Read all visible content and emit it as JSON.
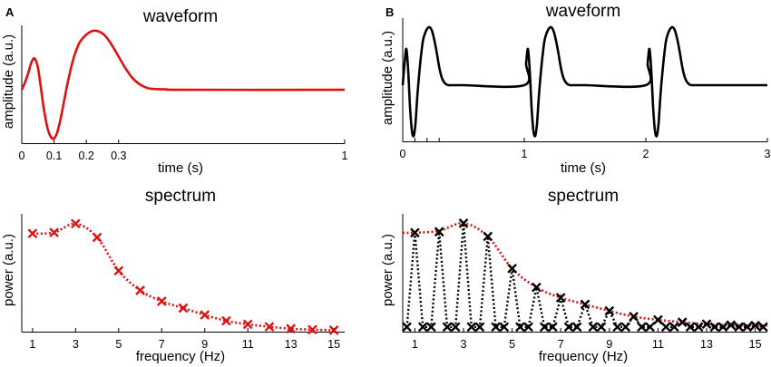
{
  "panel_labels": [
    "A",
    "B"
  ],
  "chart_data": [
    {
      "type": "line",
      "title": "waveform",
      "xlabel": "time (s)",
      "ylabel": "amplitude (a.u.)",
      "xlim": [
        0,
        1
      ],
      "xticks": [
        "0",
        "0.1",
        "0.2",
        "0.3",
        "1"
      ],
      "series": [
        {
          "color": "#e01010",
          "x": [
            0,
            0.01,
            0.02,
            0.03,
            0.04,
            0.05,
            0.06,
            0.07,
            0.08,
            0.09,
            0.1,
            0.11,
            0.12,
            0.13,
            0.14,
            0.15,
            0.16,
            0.17,
            0.18,
            0.2,
            0.22,
            0.24,
            0.26,
            0.28,
            0.3,
            0.32,
            0.34,
            0.36,
            0.38,
            0.4,
            0.45,
            0.5,
            1.0
          ],
          "y": [
            0,
            0.2,
            0.45,
            0.75,
            0.85,
            0.6,
            0.0,
            -0.6,
            -1.05,
            -1.28,
            -1.32,
            -1.15,
            -0.8,
            -0.35,
            0.1,
            0.5,
            0.85,
            1.1,
            1.3,
            1.5,
            1.6,
            1.58,
            1.45,
            1.2,
            0.9,
            0.6,
            0.35,
            0.18,
            0.08,
            0.03,
            0.01,
            0,
            0
          ]
        }
      ]
    },
    {
      "type": "line",
      "title": "spectrum",
      "xlabel": "frequency (Hz)",
      "ylabel": "power (a.u.)",
      "xlim": [
        0.5,
        15.5
      ],
      "xticks": [
        "1",
        "3",
        "5",
        "7",
        "9",
        "11",
        "13",
        "15"
      ],
      "series": [
        {
          "color": "#e01010",
          "marker": "x",
          "x": [
            1,
            2,
            3,
            4,
            5,
            6,
            7,
            8,
            9,
            10,
            11,
            12,
            13,
            14,
            15
          ],
          "y": [
            1.0,
            1.01,
            1.1,
            0.96,
            0.62,
            0.42,
            0.31,
            0.24,
            0.17,
            0.11,
            0.075,
            0.05,
            0.03,
            0.02,
            0.015
          ]
        }
      ]
    },
    {
      "type": "line",
      "title": "waveform",
      "xlabel": "time (s)",
      "ylabel": "amplitude (a.u.)",
      "xlim": [
        0,
        3
      ],
      "xticks": [
        "0",
        "1",
        "2",
        "3"
      ],
      "series": [
        {
          "color": "#000000",
          "period": 1,
          "repeats": 3,
          "x": [
            0,
            0.015,
            0.03,
            0.045,
            0.06,
            0.075,
            0.09,
            0.105,
            0.12,
            0.135,
            0.15,
            0.165,
            0.18,
            0.2,
            0.22,
            0.24,
            0.26,
            0.28,
            0.3,
            0.32,
            0.34,
            0.36,
            0.38,
            0.4,
            0.42,
            0.45,
            0.5
          ],
          "y": [
            0,
            0.6,
            1.0,
            0.4,
            -0.6,
            -1.25,
            -1.4,
            -1.05,
            -0.3,
            0.3,
            0.8,
            1.2,
            1.4,
            1.55,
            1.6,
            1.5,
            1.25,
            0.9,
            0.5,
            0.22,
            0.08,
            0.02,
            0,
            0,
            0,
            0,
            0
          ]
        }
      ]
    },
    {
      "type": "line",
      "title": "spectrum",
      "xlabel": "frequency (Hz)",
      "ylabel": "power (a.u.)",
      "xlim": [
        0.5,
        15.5
      ],
      "xticks": [
        "1",
        "3",
        "5",
        "7",
        "9",
        "11",
        "13",
        "15"
      ],
      "series": [
        {
          "color": "#e01010",
          "style": "envelope",
          "x": [
            0.5,
            1,
            2,
            3,
            4,
            5,
            6,
            7,
            8,
            9,
            10,
            11,
            12,
            13,
            14,
            15.5
          ],
          "y": [
            1.0,
            1.0,
            1.02,
            1.1,
            0.96,
            0.62,
            0.42,
            0.31,
            0.24,
            0.17,
            0.11,
            0.075,
            0.05,
            0.03,
            0.02,
            0.015
          ]
        },
        {
          "color": "#000000",
          "marker": "x",
          "style": "comb",
          "x_peak": [
            1,
            2,
            3,
            4,
            5,
            6,
            7,
            8,
            9,
            10,
            11,
            12,
            13,
            14,
            15
          ],
          "y_peak": [
            1.0,
            1.01,
            1.1,
            0.96,
            0.62,
            0.42,
            0.31,
            0.24,
            0.17,
            0.11,
            0.075,
            0.05,
            0.03,
            0.02,
            0.015
          ],
          "x_zero": [
            0.67,
            1.33,
            1.67,
            2.33,
            2.67,
            3.33,
            3.67,
            4.33,
            4.67,
            5.33,
            5.67,
            6.33,
            6.67,
            7.33,
            7.67,
            8.33,
            8.67,
            9.33,
            9.67,
            10.33,
            10.67,
            11.33,
            11.67,
            12.33,
            12.67,
            13.33,
            13.67,
            14.33,
            14.67,
            15.33
          ]
        }
      ]
    }
  ]
}
